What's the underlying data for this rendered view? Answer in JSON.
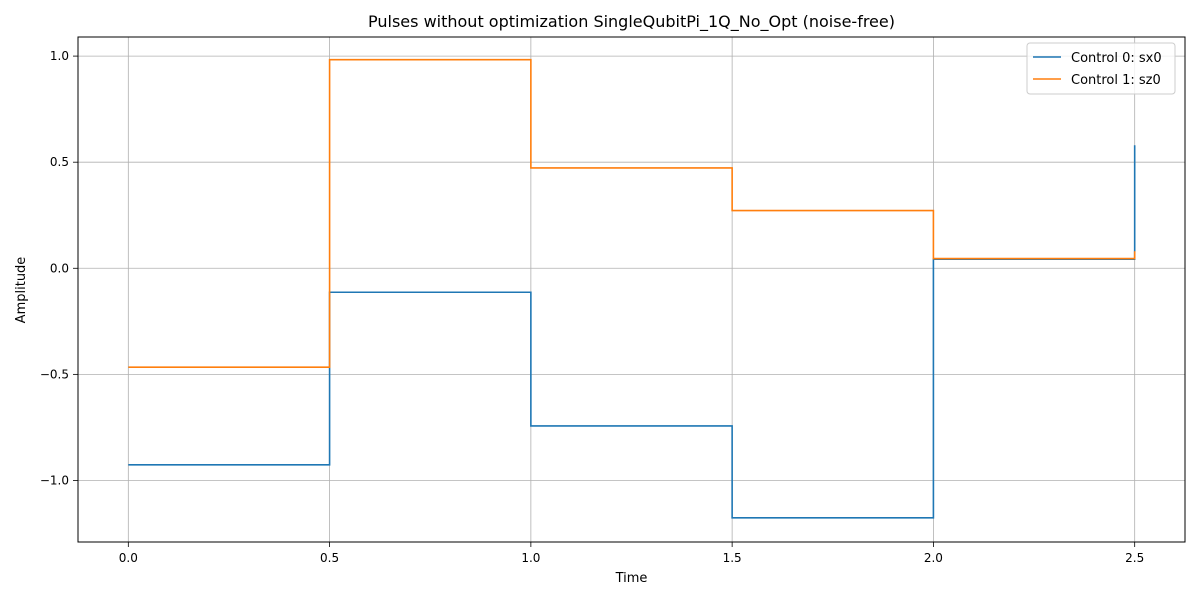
{
  "chart_data": {
    "type": "line",
    "title": "Pulses without optimization SingleQubitPi_1Q_No_Opt (noise-free)",
    "xlabel": "Time",
    "ylabel": "Amplitude",
    "xlim": [
      -0.125,
      2.625
    ],
    "ylim": [
      -1.29,
      1.09
    ],
    "xticks": [
      0.0,
      0.5,
      1.0,
      1.5,
      2.0,
      2.5
    ],
    "xtick_labels": [
      "0.0",
      "0.5",
      "1.0",
      "1.5",
      "2.0",
      "2.5"
    ],
    "yticks": [
      -1.0,
      -0.5,
      0.0,
      0.5,
      1.0
    ],
    "ytick_labels": [
      "−1.0",
      "−0.5",
      "0.0",
      "0.5",
      "1.0"
    ],
    "grid": true,
    "legend_position": "top-right",
    "step": "post",
    "x": [
      0.0,
      0.5,
      1.0,
      1.5,
      2.0,
      2.5
    ],
    "series": [
      {
        "name": "Control 0: sx0",
        "color": "#1f77b4",
        "values": [
          -0.926,
          -0.113,
          -0.743,
          -1.176,
          0.043,
          0.58
        ]
      },
      {
        "name": "Control 1: sz0",
        "color": "#ff7f0e",
        "values": [
          -0.466,
          0.983,
          0.473,
          0.272,
          0.046,
          0.08
        ]
      }
    ]
  }
}
